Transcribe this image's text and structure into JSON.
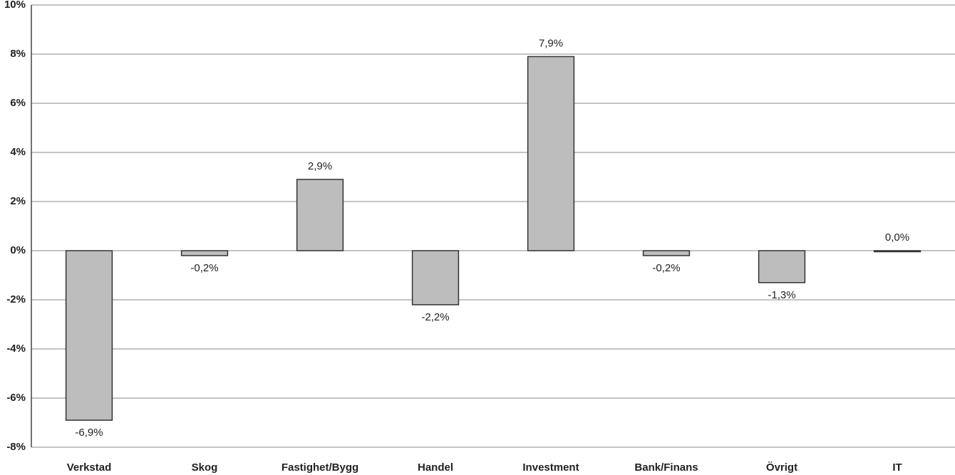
{
  "chart_data": {
    "type": "bar",
    "categories": [
      "Verkstad",
      "Skog",
      "Fastighet/Bygg",
      "Handel",
      "Investment",
      "Bank/Finans",
      "Övrigt",
      "IT"
    ],
    "values": [
      -6.9,
      -0.2,
      2.9,
      -2.2,
      7.9,
      -0.2,
      -1.3,
      0.0
    ],
    "value_labels": [
      "-6,9%",
      "-0,2%",
      "2,9%",
      "-2,2%",
      "7,9%",
      "-0,2%",
      "-1,3%",
      "0,0%"
    ],
    "color": "#bdbdbd",
    "ylim": [
      -8,
      10
    ],
    "yticks": [
      {
        "value": -8,
        "label": "-8%"
      },
      {
        "value": -6,
        "label": "-6%"
      },
      {
        "value": -4,
        "label": "-4%"
      },
      {
        "value": -2,
        "label": "-2%"
      },
      {
        "value": 0,
        "label": "0%"
      },
      {
        "value": 2,
        "label": "2%"
      },
      {
        "value": 4,
        "label": "4%"
      },
      {
        "value": 6,
        "label": "6%"
      },
      {
        "value": 8,
        "label": "8%"
      },
      {
        "value": 10,
        "label": "10%"
      }
    ],
    "grid": true
  }
}
